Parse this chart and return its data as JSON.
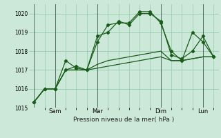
{
  "title": "",
  "xlabel": "Pression niveau de la mer( hPa )",
  "ylabel": "",
  "ylim": [
    1015,
    1020.5
  ],
  "yticks": [
    1015,
    1016,
    1017,
    1018,
    1019,
    1020
  ],
  "background_color": "#cce8d8",
  "grid_color": "#88c4a0",
  "line_color": "#1a5c1a",
  "x_tick_positions": [
    0,
    2,
    6,
    12,
    16
  ],
  "x_tick_labels": [
    "",
    "Sam",
    "Mar",
    "Dim",
    "Lun"
  ],
  "total_points": 18,
  "lines": [
    [
      1015.3,
      1016.0,
      1016.0,
      1017.5,
      1017.1,
      1017.0,
      1018.5,
      1019.4,
      1019.5,
      1019.5,
      1020.1,
      1020.1,
      1019.5,
      1018.0,
      1017.5,
      1019.0,
      1018.5,
      1017.7
    ],
    [
      1015.3,
      1016.0,
      1016.0,
      1017.0,
      1017.2,
      1017.0,
      1018.8,
      1019.0,
      1019.6,
      1019.4,
      1020.0,
      1020.0,
      1019.6,
      1017.8,
      1017.6,
      1018.0,
      1018.8,
      1017.7
    ],
    [
      1015.3,
      1016.0,
      1016.0,
      1017.0,
      1017.0,
      1017.0,
      1017.3,
      1017.5,
      1017.6,
      1017.7,
      1017.8,
      1017.9,
      1018.0,
      1017.5,
      1017.5,
      1017.6,
      1017.7,
      1017.7
    ],
    [
      1015.3,
      1016.0,
      1016.0,
      1017.0,
      1017.0,
      1017.0,
      1017.1,
      1017.2,
      1017.3,
      1017.4,
      1017.5,
      1017.6,
      1017.7,
      1017.5,
      1017.5,
      1017.6,
      1017.7,
      1017.7
    ]
  ]
}
